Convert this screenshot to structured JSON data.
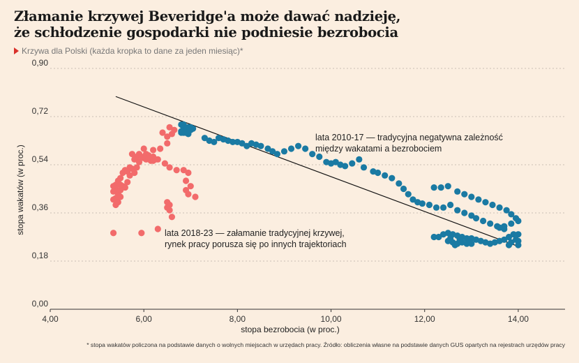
{
  "header": {
    "title_line1": "Złamanie krzywej Beveridge'a może dawać nadzieję,",
    "title_line2": "że schłodzenie gospodarki nie podniesie bezrobocia",
    "subtitle": "Krzywa dla Polski (każda kropka to dane za jeden miesiąc)*"
  },
  "footnote": "* stopa wakatów policzona na podstawie danych o wolnych miejscach w urzędach pracy. Źródło: obliczenia własne na podstawie danych GUS opartych na rejestrach urzędów pracy",
  "colors": {
    "series_2010_17": "#1a7aa3",
    "series_2018_23": "#f26b6b",
    "accent": "#d9312b",
    "background": "#fbeee0",
    "grid": "#b8b0a6"
  },
  "chart_data": {
    "type": "scatter",
    "xlabel": "stopa bezrobocia (w proc.)",
    "ylabel": "stopa wakatów (w proc.)",
    "xlim": [
      4.0,
      15.0
    ],
    "ylim": [
      0.0,
      0.9
    ],
    "xticks": [
      "4,00",
      "6,00",
      "8,00",
      "10,00",
      "12,00",
      "14,00"
    ],
    "xtick_values": [
      4,
      6,
      8,
      10,
      12,
      14
    ],
    "yticks": [
      "0,00",
      "0,18",
      "0,36",
      "0,54",
      "0,72",
      "0,90"
    ],
    "ytick_values": [
      0,
      0.18,
      0.36,
      0.54,
      0.72,
      0.9
    ],
    "grid": "horizontal dashed",
    "annotations": [
      {
        "lines": [
          "lata 2010-17 — tradycyjna negatywna zależność",
          "między wakatami a bezrobociem"
        ]
      },
      {
        "lines": [
          "lata 2018-23 — załamanie tradycyjnej krzywej,",
          "rynek pracy porusza się po innych trajektoriach"
        ]
      }
    ],
    "trendline": {
      "x": [
        5.4,
        14.0
      ],
      "y": [
        0.795,
        0.235
      ]
    },
    "series": [
      {
        "period": "2010-17",
        "points": [
          [
            6.85,
            0.69
          ],
          [
            6.8,
            0.69
          ],
          [
            6.95,
            0.68
          ],
          [
            6.85,
            0.675
          ],
          [
            7.0,
            0.68
          ],
          [
            7.05,
            0.675
          ],
          [
            6.9,
            0.67
          ],
          [
            6.95,
            0.665
          ],
          [
            7.0,
            0.67
          ],
          [
            6.8,
            0.665
          ],
          [
            6.9,
            0.66
          ],
          [
            6.85,
            0.66
          ],
          [
            6.95,
            0.655
          ],
          [
            6.8,
            0.66
          ],
          [
            7.3,
            0.64
          ],
          [
            7.4,
            0.63
          ],
          [
            7.5,
            0.625
          ],
          [
            7.6,
            0.64
          ],
          [
            7.7,
            0.635
          ],
          [
            7.8,
            0.63
          ],
          [
            7.9,
            0.625
          ],
          [
            8.0,
            0.625
          ],
          [
            8.1,
            0.62
          ],
          [
            8.2,
            0.61
          ],
          [
            8.3,
            0.62
          ],
          [
            8.4,
            0.615
          ],
          [
            8.5,
            0.61
          ],
          [
            8.65,
            0.6
          ],
          [
            8.75,
            0.59
          ],
          [
            8.85,
            0.58
          ],
          [
            9.0,
            0.59
          ],
          [
            9.15,
            0.6
          ],
          [
            9.3,
            0.61
          ],
          [
            9.45,
            0.6
          ],
          [
            9.6,
            0.58
          ],
          [
            9.75,
            0.57
          ],
          [
            9.9,
            0.55
          ],
          [
            10.0,
            0.545
          ],
          [
            10.1,
            0.55
          ],
          [
            10.2,
            0.54
          ],
          [
            10.3,
            0.535
          ],
          [
            10.45,
            0.545
          ],
          [
            10.6,
            0.56
          ],
          [
            10.7,
            0.53
          ],
          [
            10.9,
            0.515
          ],
          [
            11.0,
            0.51
          ],
          [
            11.15,
            0.5
          ],
          [
            11.3,
            0.49
          ],
          [
            11.45,
            0.47
          ],
          [
            11.55,
            0.45
          ],
          [
            11.65,
            0.43
          ],
          [
            11.75,
            0.41
          ],
          [
            11.85,
            0.4
          ],
          [
            11.95,
            0.395
          ],
          [
            12.1,
            0.39
          ],
          [
            12.25,
            0.38
          ],
          [
            12.4,
            0.38
          ],
          [
            12.55,
            0.39
          ],
          [
            12.7,
            0.37
          ],
          [
            12.85,
            0.36
          ],
          [
            13.0,
            0.35
          ],
          [
            13.1,
            0.34
          ],
          [
            13.25,
            0.33
          ],
          [
            13.4,
            0.32
          ],
          [
            13.55,
            0.31
          ],
          [
            13.7,
            0.3
          ],
          [
            12.2,
            0.455
          ],
          [
            12.35,
            0.455
          ],
          [
            12.5,
            0.46
          ],
          [
            12.7,
            0.44
          ],
          [
            12.85,
            0.43
          ],
          [
            13.0,
            0.42
          ],
          [
            13.15,
            0.41
          ],
          [
            13.3,
            0.4
          ],
          [
            13.45,
            0.39
          ],
          [
            13.6,
            0.38
          ],
          [
            13.75,
            0.37
          ],
          [
            13.85,
            0.355
          ],
          [
            13.95,
            0.34
          ],
          [
            14.0,
            0.33
          ],
          [
            13.85,
            0.32
          ],
          [
            13.7,
            0.31
          ],
          [
            13.6,
            0.305
          ],
          [
            12.2,
            0.27
          ],
          [
            12.3,
            0.27
          ],
          [
            12.4,
            0.28
          ],
          [
            12.5,
            0.285
          ],
          [
            12.6,
            0.28
          ],
          [
            12.7,
            0.275
          ],
          [
            12.8,
            0.27
          ],
          [
            12.9,
            0.265
          ],
          [
            13.0,
            0.265
          ],
          [
            13.1,
            0.26
          ],
          [
            13.2,
            0.255
          ],
          [
            13.3,
            0.25
          ],
          [
            13.4,
            0.245
          ],
          [
            13.5,
            0.25
          ],
          [
            13.6,
            0.255
          ],
          [
            13.7,
            0.26
          ],
          [
            13.8,
            0.27
          ],
          [
            13.9,
            0.28
          ],
          [
            14.0,
            0.28
          ],
          [
            13.95,
            0.26
          ],
          [
            13.85,
            0.25
          ],
          [
            13.8,
            0.24
          ],
          [
            14.0,
            0.24
          ],
          [
            14.0,
            0.255
          ],
          [
            12.5,
            0.255
          ],
          [
            12.6,
            0.25
          ],
          [
            12.7,
            0.245
          ],
          [
            12.8,
            0.25
          ],
          [
            12.9,
            0.245
          ],
          [
            13.0,
            0.245
          ],
          [
            12.75,
            0.26
          ],
          [
            12.55,
            0.265
          ],
          [
            12.65,
            0.24
          ],
          [
            12.95,
            0.25
          ]
        ]
      },
      {
        "period": "2018-23",
        "points": [
          [
            6.55,
            0.68
          ],
          [
            6.4,
            0.66
          ],
          [
            6.5,
            0.645
          ],
          [
            6.6,
            0.655
          ],
          [
            6.65,
            0.67
          ],
          [
            6.5,
            0.62
          ],
          [
            6.35,
            0.6
          ],
          [
            6.2,
            0.595
          ],
          [
            6.0,
            0.6
          ],
          [
            5.9,
            0.58
          ],
          [
            5.85,
            0.57
          ],
          [
            5.75,
            0.58
          ],
          [
            5.8,
            0.56
          ],
          [
            5.9,
            0.55
          ],
          [
            6.0,
            0.565
          ],
          [
            6.05,
            0.56
          ],
          [
            6.15,
            0.555
          ],
          [
            6.2,
            0.57
          ],
          [
            6.1,
            0.575
          ],
          [
            5.95,
            0.57
          ],
          [
            6.05,
            0.58
          ],
          [
            6.1,
            0.565
          ],
          [
            6.2,
            0.555
          ],
          [
            6.25,
            0.56
          ],
          [
            6.3,
            0.56
          ],
          [
            5.7,
            0.53
          ],
          [
            5.6,
            0.52
          ],
          [
            5.55,
            0.51
          ],
          [
            5.5,
            0.49
          ],
          [
            5.45,
            0.48
          ],
          [
            5.4,
            0.465
          ],
          [
            5.35,
            0.46
          ],
          [
            5.4,
            0.45
          ],
          [
            5.35,
            0.44
          ],
          [
            5.45,
            0.43
          ],
          [
            5.5,
            0.42
          ],
          [
            5.4,
            0.415
          ],
          [
            5.35,
            0.41
          ],
          [
            5.45,
            0.4
          ],
          [
            5.4,
            0.39
          ],
          [
            5.5,
            0.445
          ],
          [
            5.55,
            0.46
          ],
          [
            5.6,
            0.455
          ],
          [
            5.5,
            0.465
          ],
          [
            5.65,
            0.475
          ],
          [
            5.7,
            0.5
          ],
          [
            5.8,
            0.51
          ],
          [
            5.75,
            0.525
          ],
          [
            5.85,
            0.53
          ],
          [
            5.65,
            0.515
          ],
          [
            6.45,
            0.545
          ],
          [
            6.55,
            0.53
          ],
          [
            6.7,
            0.52
          ],
          [
            6.85,
            0.52
          ],
          [
            6.95,
            0.51
          ],
          [
            6.9,
            0.48
          ],
          [
            7.0,
            0.46
          ],
          [
            6.9,
            0.445
          ],
          [
            6.95,
            0.43
          ],
          [
            7.1,
            0.42
          ],
          [
            6.5,
            0.4
          ],
          [
            6.55,
            0.39
          ],
          [
            6.5,
            0.38
          ],
          [
            6.55,
            0.37
          ],
          [
            6.6,
            0.345
          ],
          [
            5.35,
            0.285
          ],
          [
            5.95,
            0.285
          ],
          [
            6.3,
            0.3
          ]
        ]
      }
    ]
  }
}
